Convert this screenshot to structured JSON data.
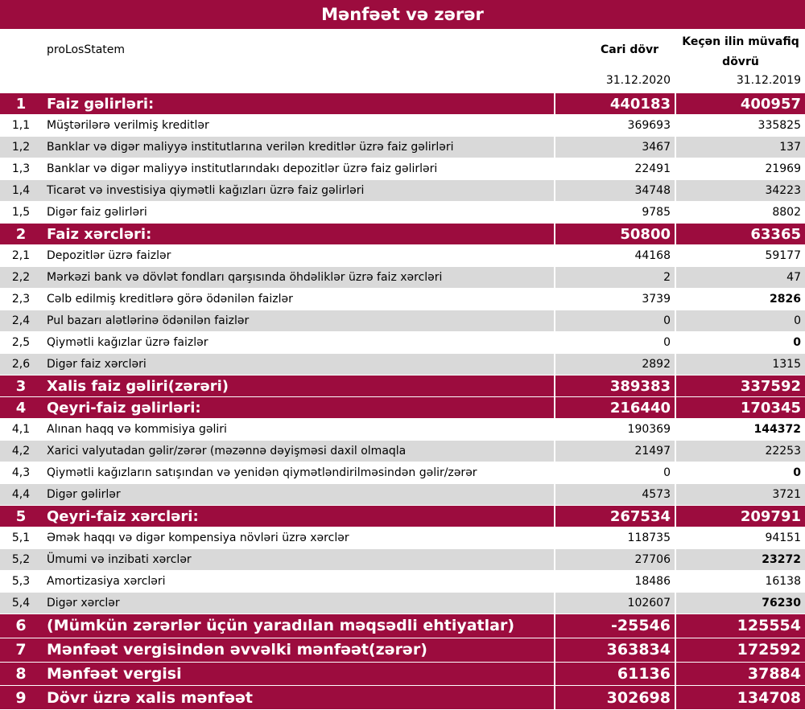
{
  "title": "Mənfəət və zərər",
  "header": {
    "label": "proLosStatem",
    "current": "Cari dövr",
    "prior": "Keçən ilin müvafiq dövrü",
    "current_date": "31.12.2020",
    "prior_date": "31.12.2019"
  },
  "rows": [
    {
      "no": "1",
      "label": "Faiz gəlirləri:",
      "current": 440183,
      "prior": 400957,
      "level": "main"
    },
    {
      "no": "1,1",
      "label": "Müştərilərə verilmiş kreditlər",
      "current": 369693,
      "prior": 335825,
      "level": "sub"
    },
    {
      "no": "1,2",
      "label": "Banklar və digər maliyyə institutlarına verilən kreditlər üzrə faiz gəlirləri",
      "current": 3467,
      "prior": 137,
      "level": "sub"
    },
    {
      "no": "1,3",
      "label": "Banklar və digər maliyyə institutlarındakı depozitlər üzrə faiz gəlirləri",
      "current": 22491,
      "prior": 21969,
      "level": "sub"
    },
    {
      "no": "1,4",
      "label": "Ticarət və investisiya qiymətli kağızları üzrə faiz gəlirləri",
      "current": 34748,
      "prior": 34223,
      "level": "sub"
    },
    {
      "no": "1,5",
      "label": "Digər faiz gəlirləri",
      "current": 9785,
      "prior": 8802,
      "level": "sub"
    },
    {
      "no": "2",
      "label": "Faiz xərcləri:",
      "current": 50800,
      "prior": 63365,
      "level": "main"
    },
    {
      "no": "2,1",
      "label": "Depozitlər üzrə faizlər",
      "current": 44168,
      "prior": 59177,
      "level": "sub"
    },
    {
      "no": "2,2",
      "label": "Mərkəzi bank və dövlət fondları qarşısında öhdəliklər üzrə faiz xərcləri",
      "current": 2,
      "prior": 47,
      "level": "sub"
    },
    {
      "no": "2,3",
      "label": "Cəlb edilmiş kreditlərə görə ödənilən faizlər",
      "current": 3739,
      "prior": 2826,
      "level": "sub",
      "prior_bold": true
    },
    {
      "no": "2,4",
      "label": "Pul bazarı alətlərinə ödənilən faizlər",
      "current": 0,
      "prior": 0,
      "level": "sub"
    },
    {
      "no": "2,5",
      "label": "Qiymətli kağızlar üzrə faizlər",
      "current": 0,
      "prior": 0,
      "level": "sub",
      "prior_bold": true
    },
    {
      "no": "2,6",
      "label": "Digər faiz xərcləri",
      "current": 2892,
      "prior": 1315,
      "level": "sub"
    },
    {
      "no": "3",
      "label": "Xalis faiz gəliri(zərəri)",
      "current": 389383,
      "prior": 337592,
      "level": "main"
    },
    {
      "no": "4",
      "label": "Qeyri-faiz gəlirləri:",
      "current": 216440,
      "prior": 170345,
      "level": "main"
    },
    {
      "no": "4,1",
      "label": "Alınan haqq və kommisiya gəliri",
      "current": 190369,
      "prior": 144372,
      "level": "sub",
      "prior_bold": true
    },
    {
      "no": "4,2",
      "label": "Xarici valyutadan gəlir/zərər (məzənnə dəyişməsi daxil olmaqla",
      "current": 21497,
      "prior": 22253,
      "level": "sub"
    },
    {
      "no": "4,3",
      "label": "Qiymətli kağızların satışından və yenidən qiymətləndirilməsindən gəlir/zərər",
      "current": 0,
      "prior": 0,
      "level": "sub",
      "prior_bold": true
    },
    {
      "no": "4,4",
      "label": "Digər gəlirlər",
      "current": 4573,
      "prior": 3721,
      "level": "sub"
    },
    {
      "no": "5",
      "label": "Qeyri-faiz xərcləri:",
      "current": 267534,
      "prior": 209791,
      "level": "main"
    },
    {
      "no": "5,1",
      "label": "Əmək haqqı və digər kompensiya növləri üzrə xərclər",
      "current": 118735,
      "prior": 94151,
      "level": "sub"
    },
    {
      "no": "5,2",
      "label": "Ümumi və inzibati xərclər",
      "current": 27706,
      "prior": 23272,
      "level": "sub",
      "prior_bold": true
    },
    {
      "no": "5,3",
      "label": "Amortizasiya xərcləri",
      "current": 18486,
      "prior": 16138,
      "level": "sub"
    },
    {
      "no": "5,4",
      "label": "Digər xərclər",
      "current": 102607,
      "prior": 76230,
      "level": "sub",
      "prior_bold": true
    },
    {
      "no": "6",
      "label": "(Mümkün zərərlər üçün yaradılan məqsədli ehtiyatlar)",
      "current": -25546,
      "prior": 125554,
      "level": "total"
    },
    {
      "no": "7",
      "label": "Mənfəət vergisindən əvvəlki mənfəət(zərər)",
      "current": 363834,
      "prior": 172592,
      "level": "total"
    },
    {
      "no": "8",
      "label": "Mənfəət vergisi",
      "current": 61136,
      "prior": 37884,
      "level": "total"
    },
    {
      "no": "9",
      "label": "Dövr üzrə xalis mənfəət",
      "current": 302698,
      "prior": 134708,
      "level": "total"
    }
  ]
}
